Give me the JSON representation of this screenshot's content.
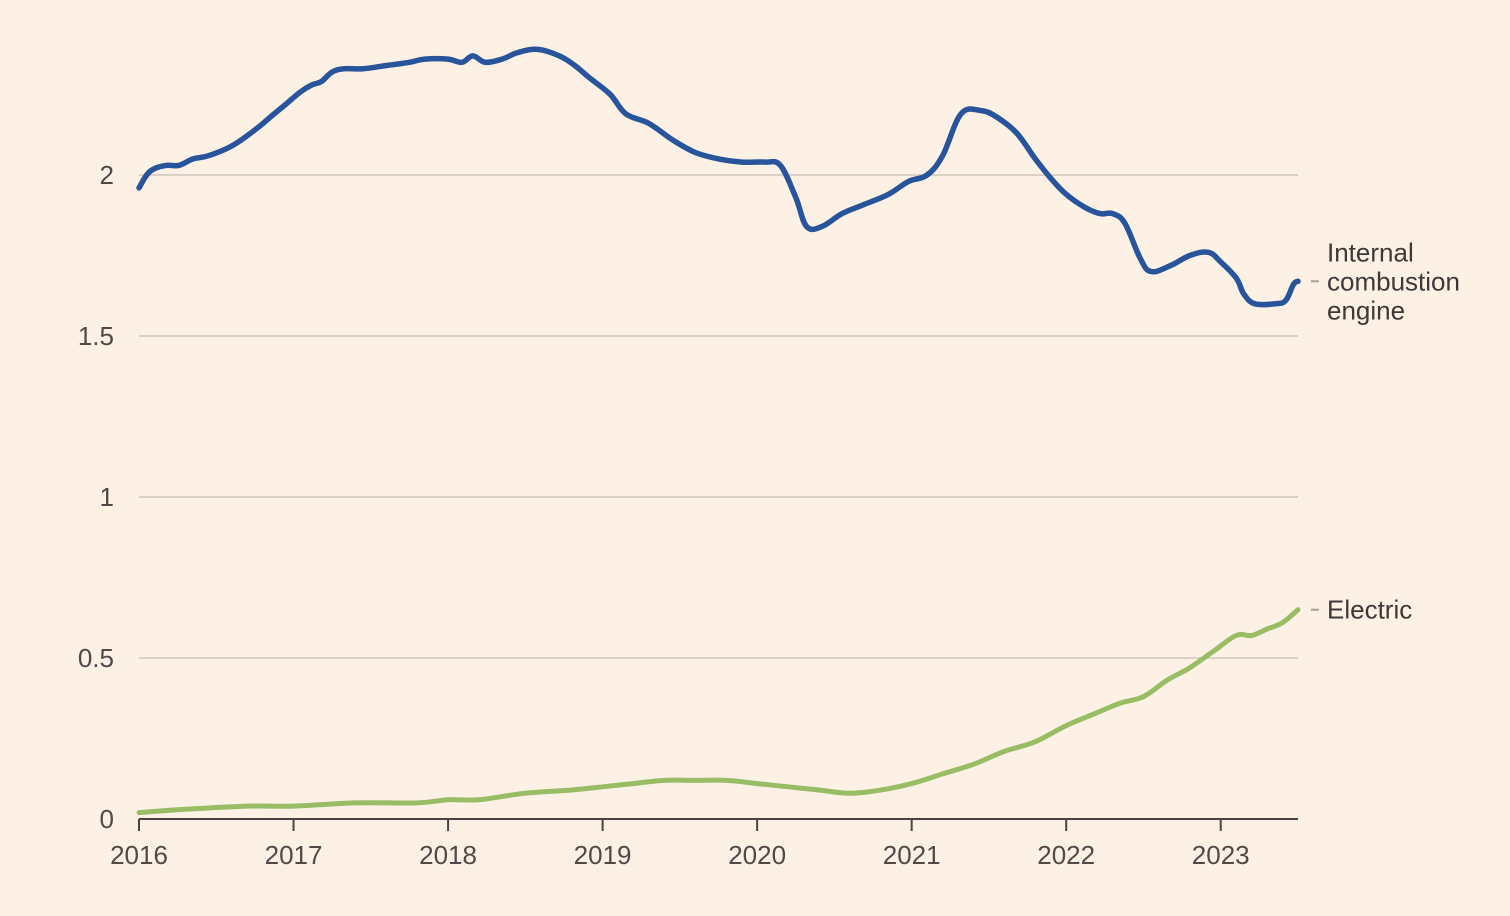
{
  "chart_data": {
    "type": "line",
    "title": "",
    "xlabel": "",
    "ylabel": "",
    "xlim": [
      2016,
      2023.5
    ],
    "ylim": [
      0,
      2.5
    ],
    "yticks": [
      0,
      0.5,
      1,
      1.5,
      2
    ],
    "ytick_labels": [
      "0",
      "0.5",
      "1",
      "1.5",
      "2"
    ],
    "xticks": [
      2016,
      2017,
      2018,
      2019,
      2020,
      2021,
      2022,
      2023
    ],
    "xtick_labels": [
      "2016",
      "2017",
      "2018",
      "2019",
      "2020",
      "2021",
      "2022",
      "2023"
    ],
    "grid": true,
    "series": [
      {
        "name": "Internal combustion engine",
        "label_lines": [
          "Internal",
          "combustion",
          "engine"
        ],
        "color": "#27549a",
        "points": [
          [
            2016.0,
            1.96
          ],
          [
            2016.05,
            2.0
          ],
          [
            2016.1,
            2.02
          ],
          [
            2016.18,
            2.03
          ],
          [
            2016.26,
            2.03
          ],
          [
            2016.35,
            2.05
          ],
          [
            2016.45,
            2.06
          ],
          [
            2016.6,
            2.09
          ],
          [
            2016.75,
            2.14
          ],
          [
            2016.85,
            2.18
          ],
          [
            2016.95,
            2.22
          ],
          [
            2017.05,
            2.26
          ],
          [
            2017.12,
            2.28
          ],
          [
            2017.18,
            2.29
          ],
          [
            2017.25,
            2.32
          ],
          [
            2017.33,
            2.33
          ],
          [
            2017.45,
            2.33
          ],
          [
            2017.6,
            2.34
          ],
          [
            2017.75,
            2.35
          ],
          [
            2017.85,
            2.36
          ],
          [
            2018.0,
            2.36
          ],
          [
            2018.09,
            2.35
          ],
          [
            2018.16,
            2.37
          ],
          [
            2018.24,
            2.35
          ],
          [
            2018.35,
            2.36
          ],
          [
            2018.45,
            2.38
          ],
          [
            2018.58,
            2.39
          ],
          [
            2018.72,
            2.37
          ],
          [
            2018.82,
            2.34
          ],
          [
            2018.92,
            2.3
          ],
          [
            2019.05,
            2.25
          ],
          [
            2019.15,
            2.19
          ],
          [
            2019.3,
            2.16
          ],
          [
            2019.45,
            2.11
          ],
          [
            2019.6,
            2.07
          ],
          [
            2019.75,
            2.05
          ],
          [
            2019.9,
            2.04
          ],
          [
            2020.05,
            2.04
          ],
          [
            2020.15,
            2.03
          ],
          [
            2020.25,
            1.93
          ],
          [
            2020.32,
            1.84
          ],
          [
            2020.42,
            1.84
          ],
          [
            2020.55,
            1.88
          ],
          [
            2020.7,
            1.91
          ],
          [
            2020.85,
            1.94
          ],
          [
            2020.98,
            1.98
          ],
          [
            2021.1,
            2.0
          ],
          [
            2021.2,
            2.06
          ],
          [
            2021.32,
            2.19
          ],
          [
            2021.45,
            2.2
          ],
          [
            2021.55,
            2.18
          ],
          [
            2021.68,
            2.13
          ],
          [
            2021.8,
            2.05
          ],
          [
            2021.9,
            1.99
          ],
          [
            2022.0,
            1.94
          ],
          [
            2022.12,
            1.9
          ],
          [
            2022.22,
            1.88
          ],
          [
            2022.3,
            1.88
          ],
          [
            2022.38,
            1.85
          ],
          [
            2022.48,
            1.74
          ],
          [
            2022.55,
            1.7
          ],
          [
            2022.68,
            1.72
          ],
          [
            2022.8,
            1.75
          ],
          [
            2022.92,
            1.76
          ],
          [
            2023.0,
            1.73
          ],
          [
            2023.1,
            1.68
          ],
          [
            2023.15,
            1.63
          ],
          [
            2023.22,
            1.6
          ],
          [
            2023.35,
            1.6
          ],
          [
            2023.42,
            1.61
          ],
          [
            2023.47,
            1.66
          ],
          [
            2023.5,
            1.67
          ]
        ]
      },
      {
        "name": "Electric",
        "label_lines": [
          "Electric"
        ],
        "color": "#98bd65",
        "points": [
          [
            2016.0,
            0.02
          ],
          [
            2016.3,
            0.03
          ],
          [
            2016.7,
            0.04
          ],
          [
            2017.0,
            0.04
          ],
          [
            2017.4,
            0.05
          ],
          [
            2017.8,
            0.05
          ],
          [
            2018.0,
            0.06
          ],
          [
            2018.2,
            0.06
          ],
          [
            2018.5,
            0.08
          ],
          [
            2018.8,
            0.09
          ],
          [
            2019.0,
            0.1
          ],
          [
            2019.2,
            0.11
          ],
          [
            2019.4,
            0.12
          ],
          [
            2019.6,
            0.12
          ],
          [
            2019.8,
            0.12
          ],
          [
            2020.0,
            0.11
          ],
          [
            2020.2,
            0.1
          ],
          [
            2020.4,
            0.09
          ],
          [
            2020.6,
            0.08
          ],
          [
            2020.8,
            0.09
          ],
          [
            2021.0,
            0.11
          ],
          [
            2021.2,
            0.14
          ],
          [
            2021.4,
            0.17
          ],
          [
            2021.6,
            0.21
          ],
          [
            2021.8,
            0.24
          ],
          [
            2022.0,
            0.29
          ],
          [
            2022.2,
            0.33
          ],
          [
            2022.35,
            0.36
          ],
          [
            2022.5,
            0.38
          ],
          [
            2022.65,
            0.43
          ],
          [
            2022.8,
            0.47
          ],
          [
            2022.95,
            0.52
          ],
          [
            2023.1,
            0.57
          ],
          [
            2023.2,
            0.57
          ],
          [
            2023.3,
            0.59
          ],
          [
            2023.4,
            0.61
          ],
          [
            2023.5,
            0.65
          ]
        ]
      }
    ]
  }
}
